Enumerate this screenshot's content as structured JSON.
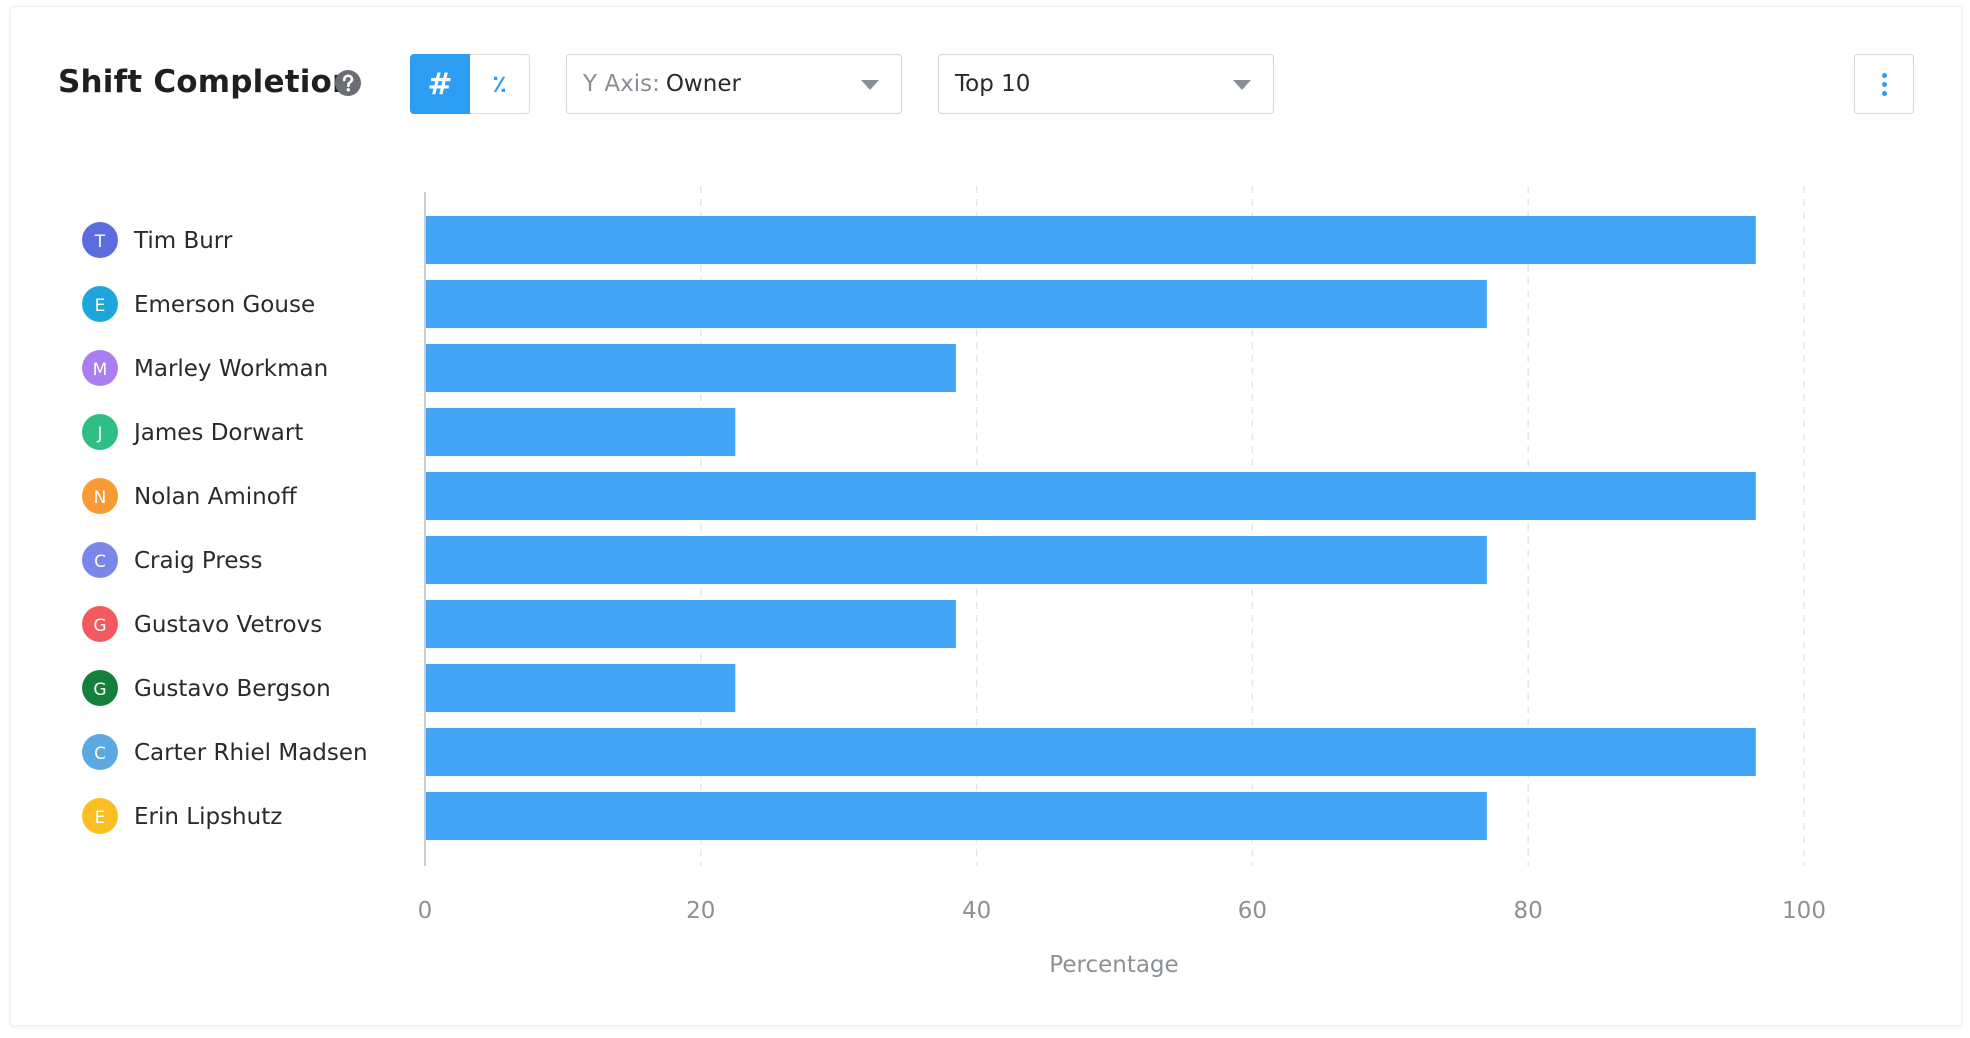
{
  "header": {
    "title": "Shift Completion",
    "help_icon": "question-circle-icon",
    "mode_toggle": {
      "count_symbol": "#",
      "percent_symbol": "٪",
      "selected": "count"
    },
    "y_axis_dropdown": {
      "prefix": "Y Axis:",
      "value": "Owner"
    },
    "limit_dropdown": {
      "value": "Top 10"
    },
    "more_icon": "vertical-ellipsis-icon"
  },
  "colors": {
    "bar": "#42a5f5",
    "accent": "#2d9cf3",
    "grid": "#e4e6e8",
    "axis_text": "#8c9196"
  },
  "chart_data": {
    "type": "bar",
    "orientation": "horizontal",
    "categories": [
      "Tim Burr",
      "Emerson Gouse",
      "Marley Workman",
      "James Dorwart",
      "Nolan Aminoff",
      "Craig Press",
      "Gustavo Vetrovs",
      "Gustavo Bergson",
      "Carter Rhiel Madsen",
      "Erin Lipshutz"
    ],
    "avatars": [
      {
        "initial": "T",
        "color": "#5c6bdd"
      },
      {
        "initial": "E",
        "color": "#1ea5dc"
      },
      {
        "initial": "M",
        "color": "#a97ef0"
      },
      {
        "initial": "J",
        "color": "#2fbf84"
      },
      {
        "initial": "N",
        "color": "#fa9a32"
      },
      {
        "initial": "C",
        "color": "#7b87e8"
      },
      {
        "initial": "G",
        "color": "#f25a5e"
      },
      {
        "initial": "G",
        "color": "#15803d"
      },
      {
        "initial": "C",
        "color": "#5ca8e0"
      },
      {
        "initial": "E",
        "color": "#fbbf24"
      }
    ],
    "values": [
      96.5,
      77,
      38.5,
      22.5,
      96.5,
      77,
      38.5,
      22.5,
      96.5,
      77
    ],
    "xlabel": "Percentage",
    "ylabel": "",
    "xlim": [
      0,
      100
    ],
    "xticks": [
      0,
      20,
      40,
      60,
      80,
      100
    ],
    "grid": true,
    "legend": "none"
  }
}
